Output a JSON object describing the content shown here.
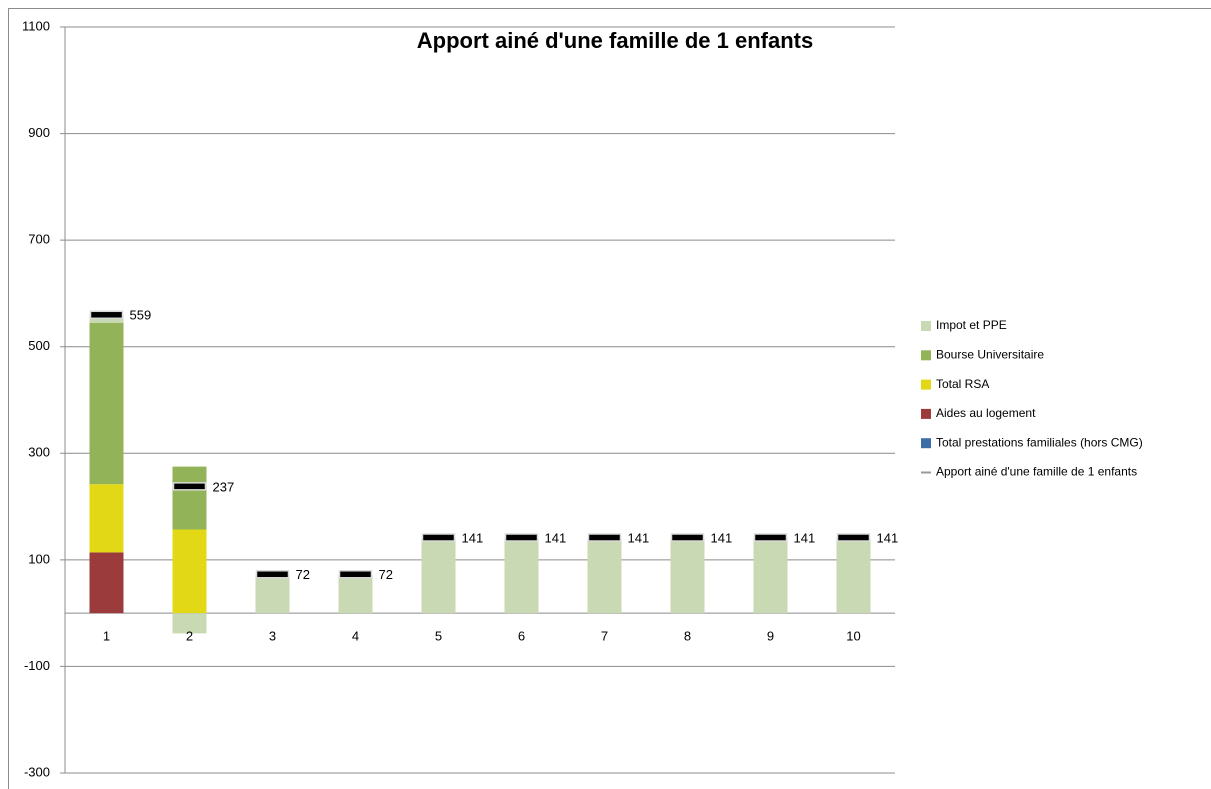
{
  "chart_data": {
    "type": "bar",
    "stacked": true,
    "title": "Apport ainé d'une famille de 1 enfants",
    "categories": [
      "1",
      "2",
      "3",
      "4",
      "5",
      "6",
      "7",
      "8",
      "9",
      "10"
    ],
    "series": [
      {
        "name": "Impot et PPE",
        "color": "#c9d9b3",
        "values": [
          14,
          -38,
          72,
          72,
          141,
          141,
          141,
          141,
          141,
          141
        ]
      },
      {
        "name": "Bourse Universitaire",
        "color": "#93b358",
        "values": [
          303,
          118,
          0,
          0,
          0,
          0,
          0,
          0,
          0,
          0
        ]
      },
      {
        "name": "Total RSA",
        "color": "#e2d816",
        "values": [
          128,
          157,
          0,
          0,
          0,
          0,
          0,
          0,
          0,
          0
        ]
      },
      {
        "name": "Aides au logement",
        "color": "#9b3b3b",
        "values": [
          114,
          0,
          0,
          0,
          0,
          0,
          0,
          0,
          0,
          0
        ]
      },
      {
        "name": "Total prestations  familiales (hors CMG)",
        "color": "#3d6da6",
        "values": [
          0,
          0,
          0,
          0,
          0,
          0,
          0,
          0,
          0,
          0
        ]
      },
      {
        "name": "Apport ainé d'une famille de 1 enfants",
        "color": "#000000",
        "type": "line",
        "values": [
          559,
          237,
          72,
          72,
          141,
          141,
          141,
          141,
          141,
          141
        ]
      }
    ],
    "ylim": [
      -300,
      1100
    ],
    "yticks": [
      -300,
      -100,
      100,
      300,
      500,
      700,
      900,
      1100
    ],
    "grid": true,
    "legend": "right"
  }
}
